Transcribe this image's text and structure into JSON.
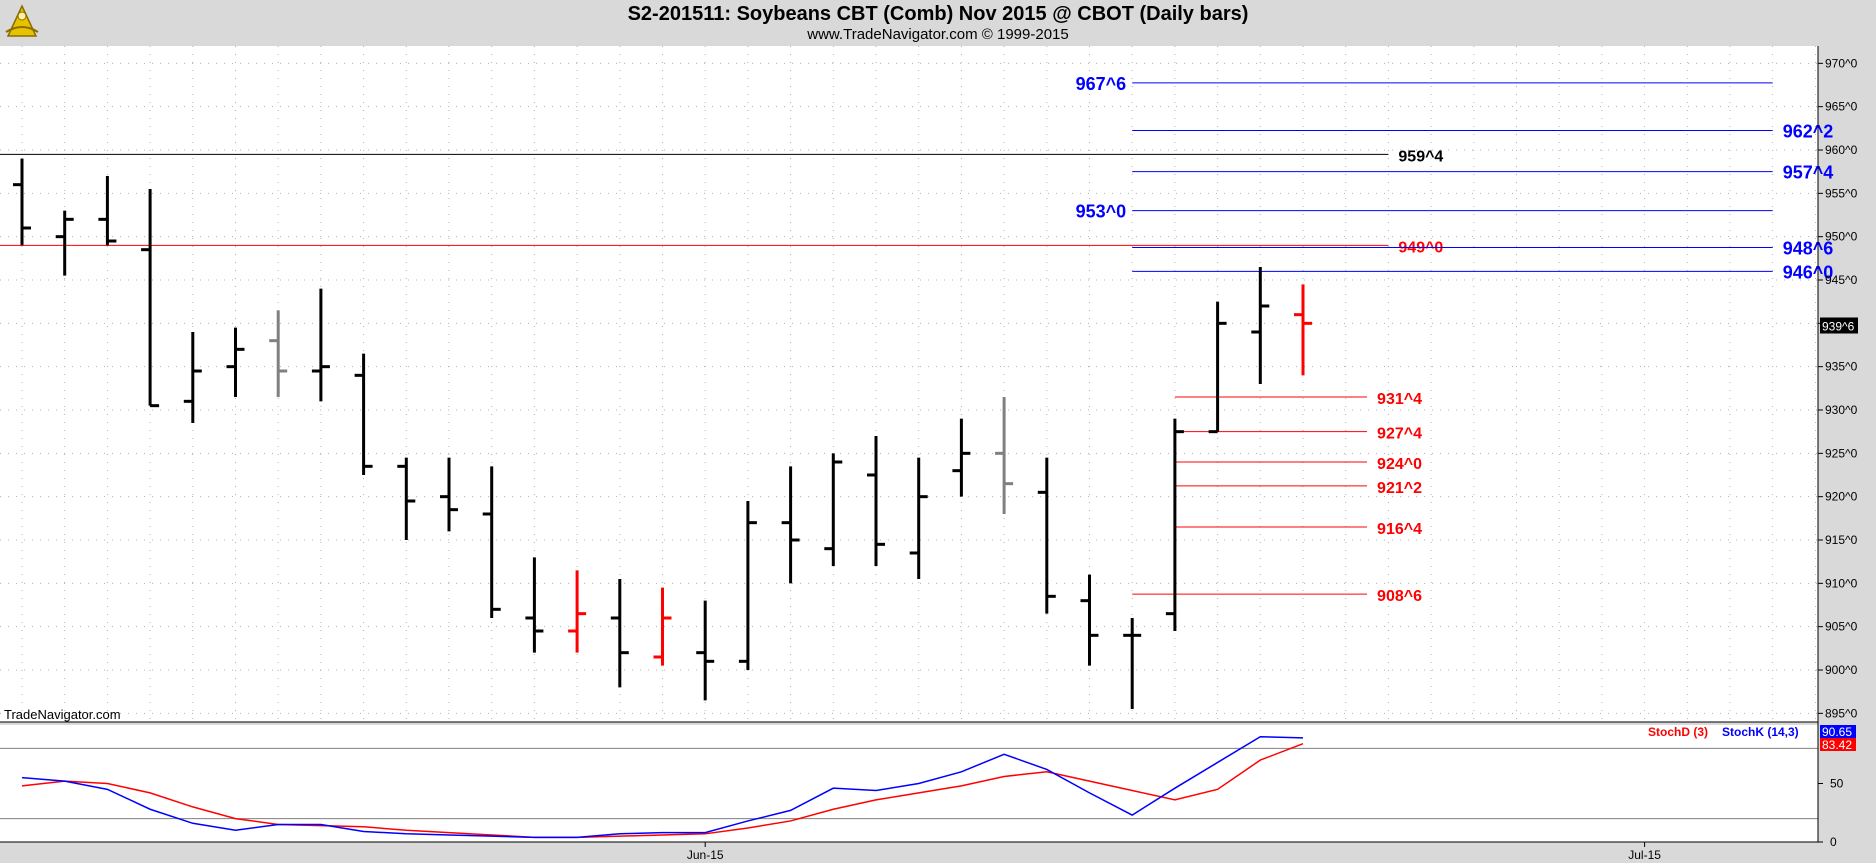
{
  "header": {
    "title": "S2-201511:  Soybeans CBT (Comb) Nov 2015 @ CBOT  (Daily bars)",
    "subtitle": "www.TradeNavigator.com © 1999-2015",
    "watermark": "TradeNavigator.com",
    "logo_icon": "sextant-logo-icon"
  },
  "colors": {
    "background": "#d9d9d9",
    "plot_bg": "#ffffff",
    "bar_up": "#000000",
    "bar_down": "#ff0000",
    "bar_neutral": "#808080",
    "blue_levels": "#0000ff",
    "red_levels": "#ff0000",
    "stoch_d": "#ff0000",
    "stoch_k": "#0000ff"
  },
  "chart_data": [
    {
      "type": "ohlc",
      "title": "S2-201511:  Soybeans CBT (Comb) Nov 2015 @ CBOT  (Daily bars)",
      "ylim": [
        894,
        972
      ],
      "yticks": [
        970,
        965,
        960,
        955,
        950,
        945,
        940,
        935,
        930,
        925,
        920,
        915,
        910,
        905,
        900,
        895
      ],
      "ytick_labels": [
        "970^0",
        "965^0",
        "960^0",
        "955^0",
        "950^0",
        "945^0",
        "940^0",
        "935^0",
        "930^0",
        "925^0",
        "920^0",
        "915^0",
        "910^0",
        "905^0",
        "900^0",
        "895^0"
      ],
      "x_labels": [
        {
          "index": 16,
          "label": "Jun-15"
        },
        {
          "index": 38,
          "label": "Jul-15"
        }
      ],
      "last_price": {
        "value": 939.75,
        "label": "939^6"
      },
      "bars": [
        {
          "o": 956,
          "h": 959,
          "l": 949,
          "c": 951,
          "color": "black"
        },
        {
          "o": 950,
          "h": 953,
          "l": 945.5,
          "c": 952,
          "color": "black"
        },
        {
          "o": 952,
          "h": 957,
          "l": 949,
          "c": 949.5,
          "color": "black"
        },
        {
          "o": 948.5,
          "h": 955.5,
          "l": 930.5,
          "c": 930.5,
          "color": "black"
        },
        {
          "o": 931,
          "h": 939,
          "l": 928.5,
          "c": 934.5,
          "color": "black"
        },
        {
          "o": 935,
          "h": 939.5,
          "l": 931.5,
          "c": 937,
          "color": "black"
        },
        {
          "o": 938,
          "h": 941.5,
          "l": 931.5,
          "c": 934.5,
          "color": "gray"
        },
        {
          "o": 934.5,
          "h": 944,
          "l": 931,
          "c": 935,
          "color": "black"
        },
        {
          "o": 934,
          "h": 936.5,
          "l": 922.5,
          "c": 923.5,
          "color": "black"
        },
        {
          "o": 923.5,
          "h": 924.5,
          "l": 915,
          "c": 919.5,
          "color": "black"
        },
        {
          "o": 920,
          "h": 924.5,
          "l": 916,
          "c": 918.5,
          "color": "black"
        },
        {
          "o": 918,
          "h": 923.5,
          "l": 906,
          "c": 907,
          "color": "black"
        },
        {
          "o": 906,
          "h": 913,
          "l": 902,
          "c": 904.5,
          "color": "black"
        },
        {
          "o": 904.5,
          "h": 911.5,
          "l": 902,
          "c": 906.5,
          "color": "red"
        },
        {
          "o": 906,
          "h": 910.5,
          "l": 898,
          "c": 902,
          "color": "black"
        },
        {
          "o": 901.5,
          "h": 909.5,
          "l": 900.5,
          "c": 906,
          "color": "red"
        },
        {
          "o": 902,
          "h": 908,
          "l": 896.5,
          "c": 901,
          "color": "black"
        },
        {
          "o": 901,
          "h": 919.5,
          "l": 900,
          "c": 917,
          "color": "black"
        },
        {
          "o": 917,
          "h": 923.5,
          "l": 910,
          "c": 915,
          "color": "black"
        },
        {
          "o": 914,
          "h": 925,
          "l": 912,
          "c": 924,
          "color": "black"
        },
        {
          "o": 922.5,
          "h": 927,
          "l": 912,
          "c": 914.5,
          "color": "black"
        },
        {
          "o": 913.5,
          "h": 924.5,
          "l": 910.5,
          "c": 920,
          "color": "black"
        },
        {
          "o": 923,
          "h": 929,
          "l": 920,
          "c": 925,
          "color": "black"
        },
        {
          "o": 925,
          "h": 931.5,
          "l": 918,
          "c": 921.5,
          "color": "gray"
        },
        {
          "o": 920.5,
          "h": 924.5,
          "l": 906.5,
          "c": 908.5,
          "color": "black"
        },
        {
          "o": 908,
          "h": 911,
          "l": 900.5,
          "c": 904,
          "color": "black"
        },
        {
          "o": 904,
          "h": 906,
          "l": 895.5,
          "c": 904,
          "color": "black"
        },
        {
          "o": 906.5,
          "h": 929,
          "l": 904.5,
          "c": 927.5,
          "color": "black"
        },
        {
          "o": 927.5,
          "h": 942.5,
          "l": 927.5,
          "c": 940,
          "color": "black"
        },
        {
          "o": 939,
          "h": 946.5,
          "l": 933,
          "c": 942,
          "color": "black"
        },
        {
          "o": 941,
          "h": 944.5,
          "l": 934,
          "c": 940,
          "color": "red"
        }
      ],
      "levels": [
        {
          "value": 967.75,
          "label": "967^6",
          "color": "blue",
          "from": 26,
          "to": 41,
          "label_pos": "left"
        },
        {
          "value": 962.25,
          "label": "962^2",
          "color": "blue",
          "from": 26,
          "to": 41,
          "label_pos": "right"
        },
        {
          "value": 959.5,
          "label": "959^4",
          "color": "black",
          "from": -1,
          "to": 32,
          "label_pos": "right"
        },
        {
          "value": 957.5,
          "label": "957^4",
          "color": "blue",
          "from": 26,
          "to": 41,
          "label_pos": "right"
        },
        {
          "value": 953,
          "label": "953^0",
          "color": "blue",
          "from": 26,
          "to": 41,
          "label_pos": "left"
        },
        {
          "value": 949,
          "label": "949^0",
          "color": "red",
          "from": -1,
          "to": 32,
          "label_pos": "right"
        },
        {
          "value": 948.75,
          "label": "948^6",
          "color": "blue",
          "from": 26,
          "to": 41,
          "label_pos": "right"
        },
        {
          "value": 946,
          "label": "946^0",
          "color": "blue",
          "from": 26,
          "to": 41,
          "label_pos": "right"
        },
        {
          "value": 931.5,
          "label": "931^4",
          "color": "red",
          "from": 27,
          "to": 31.5,
          "label_pos": "right"
        },
        {
          "value": 927.5,
          "label": "927^4",
          "color": "red",
          "from": 27,
          "to": 31.5,
          "label_pos": "right"
        },
        {
          "value": 924,
          "label": "924^0",
          "color": "red",
          "from": 27,
          "to": 31.5,
          "label_pos": "right"
        },
        {
          "value": 921.25,
          "label": "921^2",
          "color": "red",
          "from": 27,
          "to": 31.5,
          "label_pos": "right"
        },
        {
          "value": 916.5,
          "label": "916^4",
          "color": "red",
          "from": 27,
          "to": 31.5,
          "label_pos": "right"
        },
        {
          "value": 908.75,
          "label": "908^6",
          "color": "red",
          "from": 26,
          "to": 31.5,
          "label_pos": "right"
        }
      ]
    },
    {
      "type": "line",
      "title": "",
      "ylim": [
        0,
        100
      ],
      "yticks": [
        50,
        0
      ],
      "ytick_labels": [
        "50",
        "0"
      ],
      "reference_lines": [
        80,
        20
      ],
      "legend": [
        {
          "name": "StochD (3)",
          "color": "red"
        },
        {
          "name": "StochK (14,3)",
          "color": "blue"
        }
      ],
      "last_values": [
        {
          "value": 90.65,
          "label": "90.65",
          "color": "blue"
        },
        {
          "value": 83.42,
          "label": "83.42",
          "color": "red"
        }
      ],
      "series": [
        {
          "name": "StochD (3)",
          "color": "red",
          "values": [
            48,
            52,
            50,
            42,
            30,
            20,
            15,
            14,
            13,
            10,
            8,
            6,
            4,
            4,
            5,
            6,
            7,
            12,
            18,
            28,
            36,
            42,
            48,
            56,
            60,
            52,
            44,
            36,
            45,
            70,
            84
          ]
        },
        {
          "name": "StochK (14,3)",
          "color": "blue",
          "values": [
            55,
            52,
            45,
            28,
            16,
            10,
            15,
            15,
            9,
            7,
            6,
            5,
            4,
            4,
            7,
            8,
            8,
            18,
            27,
            46,
            44,
            50,
            60,
            75,
            62,
            42,
            23,
            46,
            68,
            90,
            89
          ]
        }
      ]
    }
  ]
}
